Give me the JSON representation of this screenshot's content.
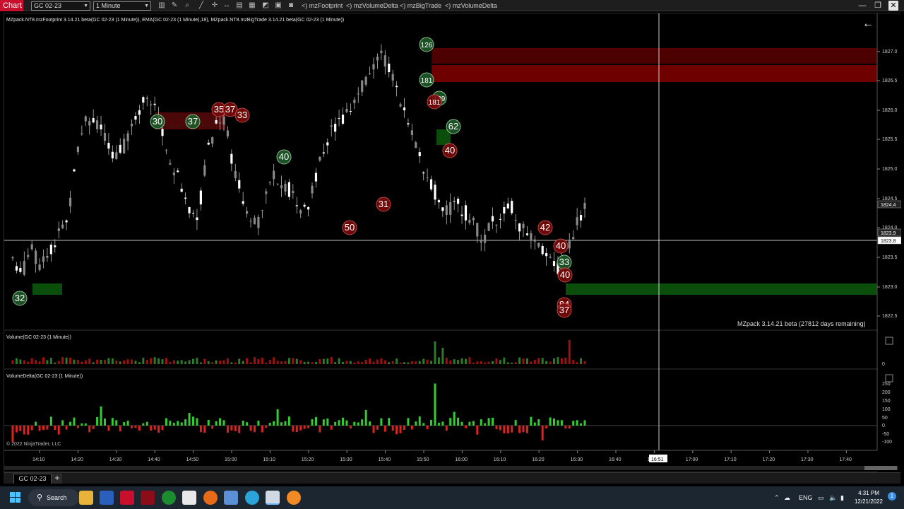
{
  "titlebar": {
    "tab_label": "Chart",
    "instrument": "GC 02-23",
    "interval": "1 Minute",
    "links": [
      "mzFootprint",
      "mzVolumeDelta",
      "mzBigTrade",
      "mzVolumeDelta"
    ],
    "link_prefix": "<)"
  },
  "chart": {
    "indicator_legend": "MZpack.NT8.mzFootprint 3.14.21 beta(GC 02-23 (1 Minute)), EMA(GC 02-23 (1 Minute),18), MZpack.NT8.mzBigTrade 3.14.21 beta(GC 02-23 (1 Minute))",
    "watermark": "MZpack 3.14.21 beta  (27812 days remaining)",
    "back_arrow": "←",
    "price_labels": [
      "1827.0",
      "1826.5",
      "1826.0",
      "1825.5",
      "1825.0",
      "1824.5",
      "1824.0",
      "1823.5",
      "1823.0",
      "1822.5"
    ],
    "price_flags": {
      "last": "1824.4",
      "bid": "1823.9",
      "crosshair": "1823.8"
    },
    "volume_label": "Volume(GC 02-23 (1 Minute))",
    "volume_zero": "0",
    "delta_label": "VolumeDelta(GC 02-23 (1 Minute))",
    "delta_ticks": [
      "250",
      "200",
      "150",
      "100",
      "50",
      "0",
      "-50",
      "-100"
    ],
    "copyright": "© 2022 NinjaTrader, LLC",
    "time_labels": [
      "14:10",
      "14:20",
      "14:30",
      "14:40",
      "14:50",
      "15:00",
      "15:10",
      "15:20",
      "15:30",
      "15:40",
      "15:50",
      "16:00",
      "16:10",
      "16:20",
      "16:30",
      "16:40",
      "16:50",
      "17:00",
      "17:10",
      "17:20",
      "17:30",
      "17:40"
    ],
    "crosshair_time": "16:51",
    "bubbles_green": [
      "32",
      "30",
      "37",
      "40",
      "126",
      "181",
      "139",
      "62",
      "33"
    ],
    "bubbles_red": [
      "35",
      "37",
      "33",
      "50",
      "31",
      "181",
      "40",
      "42",
      "40",
      "40",
      "84",
      "37"
    ],
    "colors": {
      "up": "#ffffff",
      "down": "#888888",
      "green_zone": "#0b4d0b",
      "red_zone": "#6e0000",
      "vol_up": "#2d7a2d",
      "vol_down": "#a01010",
      "delta_up": "#33cc33",
      "delta_down": "#dd2222"
    }
  },
  "footer": {
    "instrument_tab": "GC 02-23",
    "add_tab": "+"
  },
  "taskbar": {
    "search": "Search",
    "lang": "ENG",
    "time": "4:31 PM",
    "date": "12/21/2022"
  }
}
